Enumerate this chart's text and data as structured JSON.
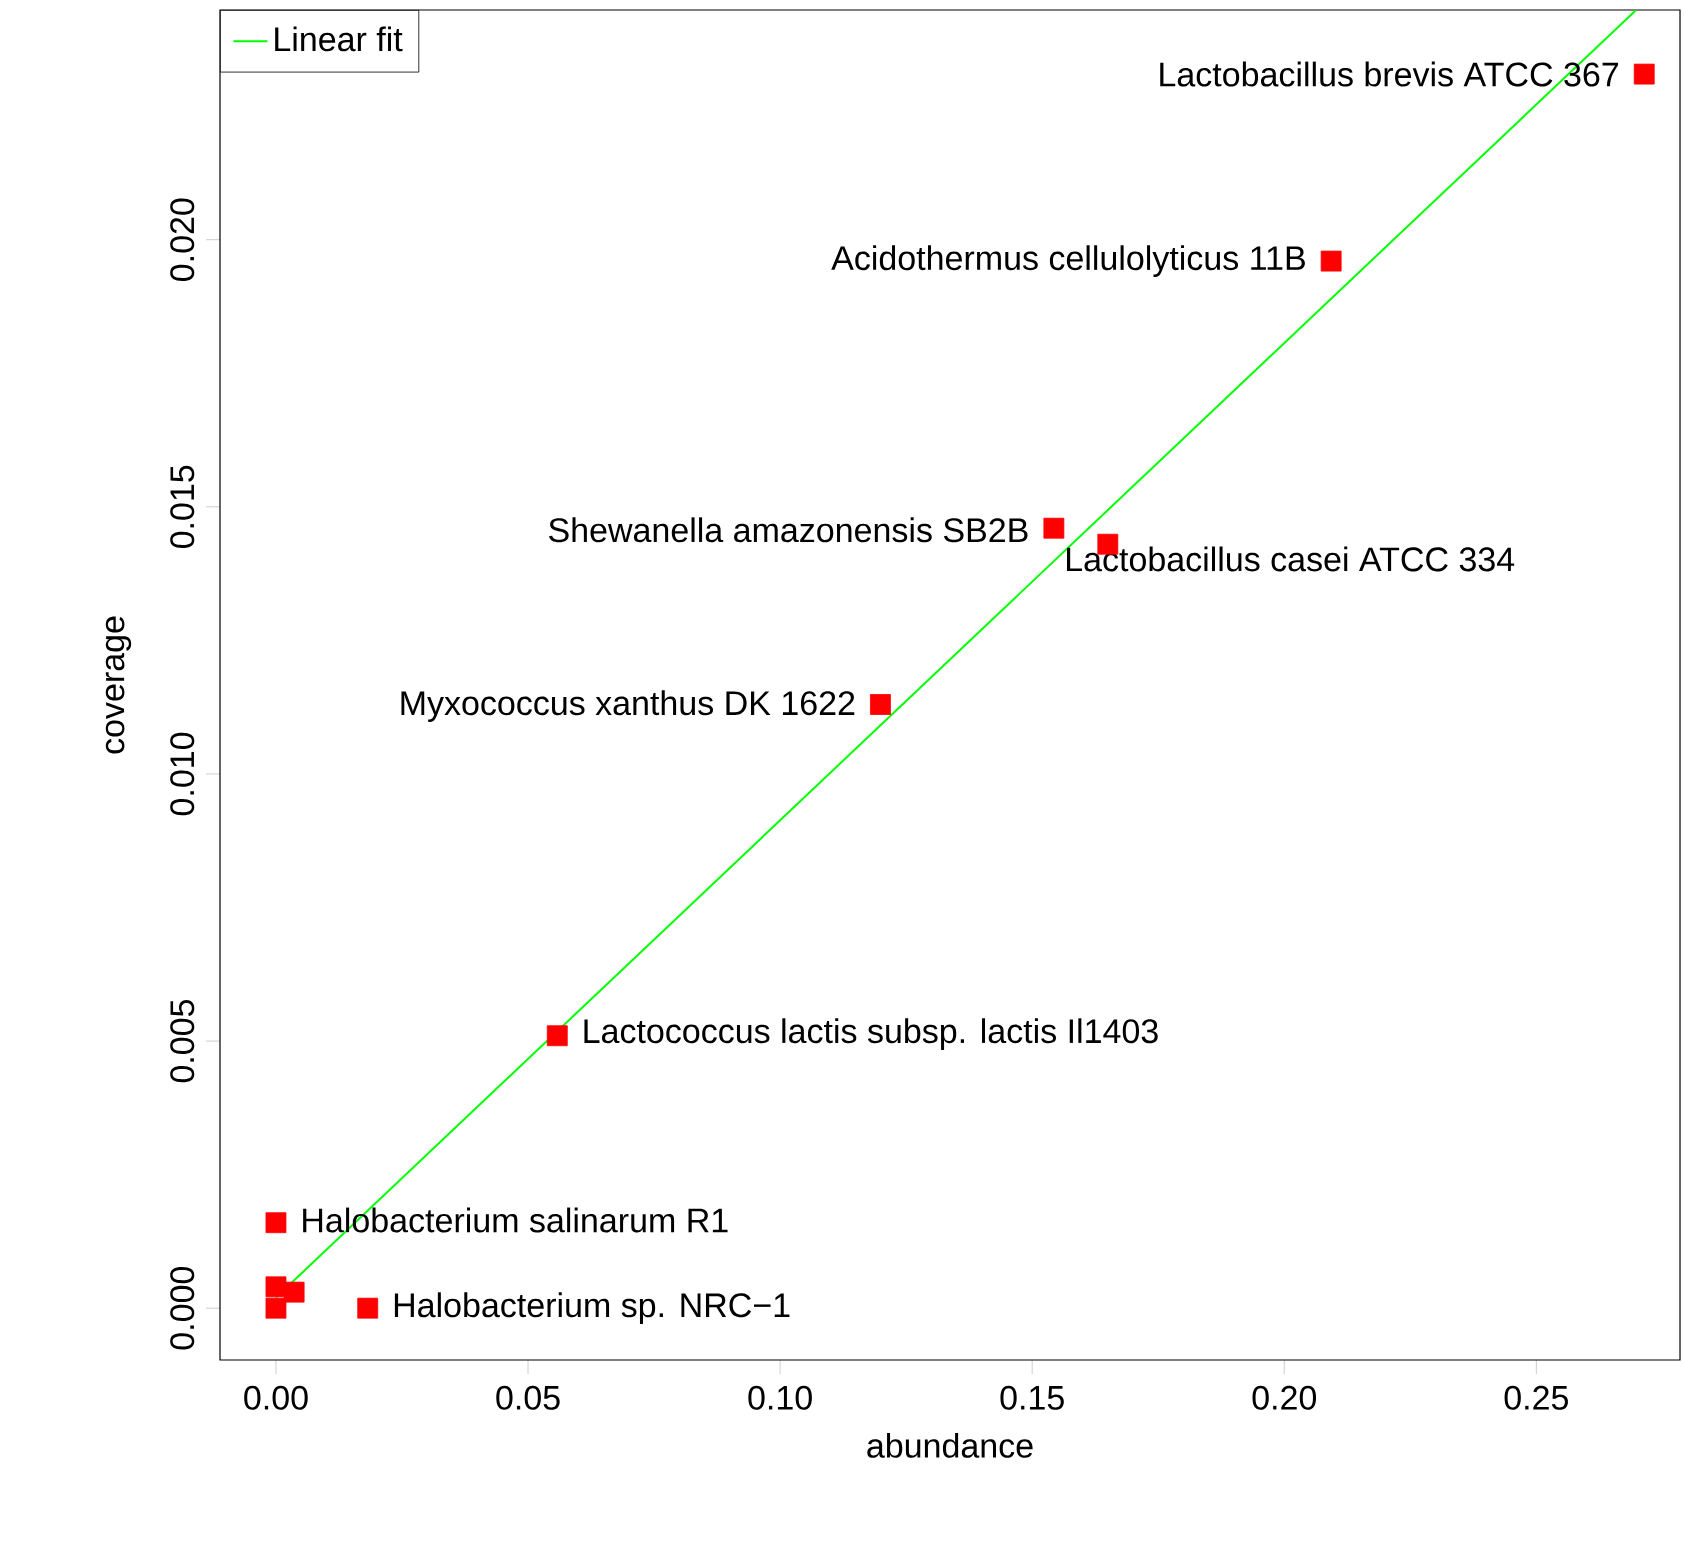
{
  "chart_data": {
    "type": "scatter",
    "xlabel": "abundance",
    "ylabel": "coverage",
    "xlim": [
      -0.0111,
      0.2785
    ],
    "ylim": [
      -0.00097,
      0.0243
    ],
    "xticks": [
      {
        "value": 0,
        "label": "0.00"
      },
      {
        "value": 0.05,
        "label": "0.05"
      },
      {
        "value": 0.1,
        "label": "0.10"
      },
      {
        "value": 0.15,
        "label": "0.15"
      },
      {
        "value": 0.2,
        "label": "0.20"
      },
      {
        "value": 0.25,
        "label": "0.25"
      }
    ],
    "yticks": [
      {
        "value": 0,
        "label": "0.000"
      },
      {
        "value": 0.005,
        "label": "0.005"
      },
      {
        "value": 0.01,
        "label": "0.010"
      },
      {
        "value": 0.015,
        "label": "0.015"
      },
      {
        "value": 0.02,
        "label": "0.020"
      }
    ],
    "marker": "square",
    "legend": "top left",
    "grid": false,
    "series": [
      {
        "color": "#ff0000",
        "x": [
          0.2714,
          0.2093,
          0.1543,
          0.165,
          0.1199,
          0.0558,
          0.0,
          0.0,
          0.0,
          0.0036,
          0.0182
        ],
        "values": [
          0.0231,
          0.0196,
          0.0146,
          0.0143,
          0.0113,
          0.0051,
          0.0016,
          0.0004,
          0.0,
          0.0003,
          0.0
        ]
      },
      {
        "type": "line",
        "name": "Linear fit",
        "color": "#00ff00",
        "marker": "none",
        "x": [
          0.0,
          0.2698
        ],
        "values": [
          0.0002,
          0.0243
        ]
      }
    ],
    "annotations": [
      {
        "text": "Lactobacillus brevis ATCC 367",
        "x": 0.2714,
        "y": 0.0231
      },
      {
        "text": "Acidothermus cellulolyticus 11B",
        "x": 0.2093,
        "y": 0.0196
      },
      {
        "text": "Shewanella amazonensis SB2B",
        "x": 0.1543,
        "y": 0.01457
      },
      {
        "text": "Lactobacillus casei ATCC 334",
        "x": 0.165,
        "y": 0.01434
      },
      {
        "text": "Myxococcus xanthus DK 1622",
        "x": 0.1199,
        "y": 0.01127
      },
      {
        "text": "Lactococcus lactis subsp. lactis Il1403",
        "x": 0.0558,
        "y": 0.00513
      },
      {
        "text": "Halobacterium salinarum R1",
        "x": 0.0,
        "y": 0.00165
      },
      {
        "text": "Halobacterium sp. NRC−1",
        "x": 0.0182,
        "y": 0.0
      }
    ]
  }
}
